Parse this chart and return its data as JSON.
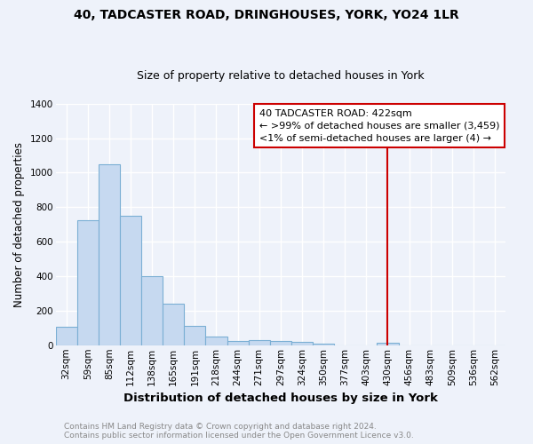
{
  "title": "40, TADCASTER ROAD, DRINGHOUSES, YORK, YO24 1LR",
  "subtitle": "Size of property relative to detached houses in York",
  "xlabel": "Distribution of detached houses by size in York",
  "ylabel": "Number of detached properties",
  "categories": [
    "32sqm",
    "59sqm",
    "85sqm",
    "112sqm",
    "138sqm",
    "165sqm",
    "191sqm",
    "218sqm",
    "244sqm",
    "271sqm",
    "297sqm",
    "324sqm",
    "350sqm",
    "377sqm",
    "403sqm",
    "430sqm",
    "456sqm",
    "483sqm",
    "509sqm",
    "536sqm",
    "562sqm"
  ],
  "values": [
    105,
    725,
    1050,
    750,
    400,
    240,
    110,
    50,
    22,
    30,
    22,
    18,
    10,
    0,
    0,
    15,
    0,
    0,
    0,
    0,
    0
  ],
  "bar_color": "#c6d9f0",
  "bar_edge_color": "#7bafd4",
  "background_color": "#eef2fa",
  "grid_color": "#ffffff",
  "vline_color": "#cc0000",
  "annotation_title": "40 TADCASTER ROAD: 422sqm",
  "annotation_line1": "← >99% of detached houses are smaller (3,459)",
  "annotation_line2": "<1% of semi-detached houses are larger (4) →",
  "annotation_box_color": "#ffffff",
  "annotation_box_edge": "#cc0000",
  "ylim": [
    0,
    1400
  ],
  "yticks": [
    0,
    200,
    400,
    600,
    800,
    1000,
    1200,
    1400
  ],
  "footer": "Contains HM Land Registry data © Crown copyright and database right 2024.\nContains public sector information licensed under the Open Government Licence v3.0.",
  "title_fontsize": 10,
  "subtitle_fontsize": 9,
  "ylabel_fontsize": 8.5,
  "xlabel_fontsize": 9.5,
  "tick_fontsize": 7.5,
  "footer_fontsize": 6.5,
  "annot_fontsize": 8
}
